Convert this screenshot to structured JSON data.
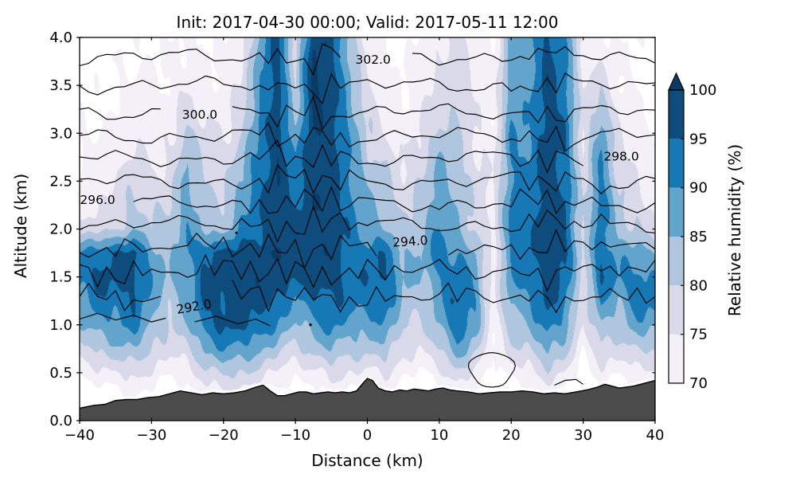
{
  "chart_data": {
    "type": "heatmap",
    "title": "Init: 2017-04-30 00:00; Valid: 2017-05-11 12:00",
    "xlabel": "Distance (km)",
    "ylabel": "Altitude (km)",
    "xlim": [
      -40,
      40
    ],
    "ylim": [
      0,
      4
    ],
    "xtick_values": [
      -40,
      -30,
      -20,
      -10,
      0,
      10,
      20,
      30,
      40
    ],
    "xtick_labels": [
      "−40",
      "−30",
      "−20",
      "−10",
      "0",
      "10",
      "20",
      "30",
      "40"
    ],
    "ytick_values": [
      0,
      0.5,
      1,
      1.5,
      2,
      2.5,
      3,
      3.5,
      4
    ],
    "ytick_labels": [
      "0.0",
      "0.5",
      "1.0",
      "1.5",
      "2.0",
      "2.5",
      "3.0",
      "3.5",
      "4.0"
    ],
    "grid": false,
    "colorbar": {
      "label": "Relative humidity (%)",
      "ticks": [
        70,
        75,
        80,
        85,
        90,
        95,
        100
      ],
      "levels": [
        70,
        75,
        80,
        85,
        90,
        95,
        100
      ],
      "band_colors": [
        "#f3f0f7",
        "#dad9ea",
        "#b0c6de",
        "#62a4cc",
        "#1678b5",
        "#0d4c7c"
      ],
      "over_color": "#0a3a66",
      "under_color": "#ffffff",
      "extend": "max"
    },
    "rh_grid": {
      "comment": "relative humidity (%) sampled on x from -40 to 40 step 2.5 km (33 cols), z from 4.0 down to 0.0 step 0.25 km (17 rows)",
      "x_start": -40,
      "x_step": 2.5,
      "z_start": 4.0,
      "z_step": -0.25,
      "values": [
        [
          68,
          67,
          68,
          69,
          70,
          69,
          71,
          70,
          69,
          72,
          86,
          97,
          78,
          99,
          97,
          84,
          73,
          70,
          69,
          71,
          74,
          77,
          72,
          69,
          88,
          86,
          97,
          91,
          73,
          72,
          69,
          70,
          68
        ],
        [
          68,
          68,
          69,
          70,
          70,
          70,
          72,
          71,
          70,
          74,
          88,
          98,
          79,
          101,
          97,
          85,
          74,
          71,
          70,
          72,
          75,
          78,
          73,
          70,
          88,
          87,
          98,
          92,
          74,
          74,
          70,
          70,
          68
        ],
        [
          68,
          68,
          70,
          71,
          71,
          71,
          74,
          72,
          71,
          76,
          89,
          98,
          80,
          102,
          98,
          87,
          76,
          72,
          70,
          73,
          77,
          79,
          74,
          70,
          89,
          88,
          98,
          93,
          75,
          78,
          71,
          70,
          68
        ],
        [
          69,
          69,
          70,
          72,
          72,
          72,
          77,
          74,
          72,
          78,
          90,
          98,
          82,
          101,
          98,
          88,
          78,
          73,
          71,
          74,
          79,
          80,
          74,
          71,
          89,
          89,
          98,
          93,
          76,
          84,
          73,
          71,
          69
        ],
        [
          70,
          70,
          72,
          74,
          73,
          73,
          82,
          76,
          74,
          80,
          91,
          99,
          86,
          99,
          98,
          89,
          80,
          75,
          72,
          76,
          82,
          81,
          75,
          72,
          90,
          90,
          98,
          94,
          75,
          88,
          75,
          72,
          70
        ],
        [
          70,
          71,
          73,
          76,
          74,
          75,
          85,
          78,
          76,
          83,
          92,
          99,
          90,
          99,
          98,
          90,
          82,
          78,
          74,
          78,
          85,
          82,
          76,
          73,
          90,
          91,
          98,
          94,
          76,
          91,
          77,
          74,
          71
        ],
        [
          71,
          72,
          75,
          79,
          76,
          77,
          87,
          80,
          78,
          86,
          93,
          99,
          92,
          99,
          98,
          91,
          84,
          81,
          76,
          80,
          87,
          83,
          77,
          74,
          90,
          92,
          98,
          95,
          77,
          92,
          79,
          76,
          72
        ],
        [
          73,
          74,
          77,
          81,
          78,
          79,
          88,
          82,
          80,
          88,
          94,
          99,
          94,
          99,
          98,
          92,
          86,
          83,
          78,
          82,
          89,
          84,
          78,
          75,
          91,
          93,
          98,
          95,
          80,
          93,
          81,
          78,
          74
        ],
        [
          76,
          78,
          80,
          84,
          81,
          83,
          89,
          84,
          83,
          90,
          95,
          99,
          96,
          99,
          98,
          93,
          88,
          85,
          80,
          84,
          91,
          85,
          80,
          74,
          92,
          94,
          98,
          96,
          78,
          93,
          83,
          80,
          76
        ],
        [
          90,
          94,
          95,
          96,
          88,
          83,
          89,
          95,
          96,
          97,
          98,
          99,
          97,
          99,
          98,
          94,
          92,
          94,
          85,
          85,
          92,
          90,
          85,
          72,
          92,
          94,
          98,
          96,
          79,
          95,
          88,
          87,
          85
        ],
        [
          92,
          96,
          96,
          97,
          90,
          84,
          88,
          96,
          97,
          98,
          98,
          98,
          97,
          98,
          97,
          94,
          94,
          96,
          86,
          84,
          90,
          94,
          88,
          73,
          90,
          92,
          97,
          94,
          78,
          95,
          90,
          92,
          90
        ],
        [
          88,
          93,
          93,
          95,
          87,
          82,
          87,
          96,
          97,
          98,
          97,
          96,
          88,
          94,
          96,
          92,
          92,
          93,
          84,
          82,
          88,
          96,
          90,
          72,
          87,
          89,
          96,
          92,
          76,
          90,
          86,
          93,
          92
        ],
        [
          84,
          88,
          89,
          92,
          85,
          80,
          84,
          93,
          96,
          96,
          94,
          90,
          84,
          88,
          92,
          88,
          88,
          89,
          81,
          79,
          85,
          95,
          88,
          71,
          83,
          85,
          93,
          88,
          74,
          85,
          82,
          88,
          87
        ],
        [
          78,
          81,
          83,
          85,
          80,
          76,
          79,
          86,
          90,
          89,
          86,
          82,
          78,
          82,
          85,
          82,
          82,
          83,
          77,
          75,
          80,
          88,
          82,
          70,
          78,
          80,
          86,
          82,
          71,
          79,
          77,
          81,
          80
        ],
        [
          71,
          73,
          75,
          77,
          74,
          71,
          73,
          78,
          81,
          80,
          78,
          74,
          71,
          74,
          77,
          75,
          74,
          76,
          71,
          70,
          73,
          79,
          75,
          67,
          72,
          74,
          78,
          75,
          67,
          73,
          71,
          74,
          73
        ],
        [
          64,
          66,
          68,
          70,
          68,
          65,
          67,
          71,
          73,
          72,
          70,
          67,
          65,
          67,
          70,
          68,
          67,
          69,
          65,
          64,
          66,
          71,
          68,
          62,
          65,
          67,
          70,
          68,
          62,
          66,
          64,
          67,
          66
        ],
        [
          60,
          60,
          60,
          60,
          60,
          60,
          60,
          60,
          60,
          60,
          60,
          60,
          60,
          60,
          60,
          60,
          60,
          60,
          60,
          60,
          60,
          60,
          60,
          60,
          60,
          60,
          60,
          60,
          60,
          60,
          60,
          60,
          60
        ]
      ]
    },
    "theta_contours": {
      "units": "K",
      "color": "#000000",
      "lines": [
        {
          "level": 302,
          "z": 3.8,
          "label": {
            "x": 0.8,
            "rot": 0
          }
        },
        {
          "level": 301,
          "z": 3.5
        },
        {
          "level": 300,
          "z": 3.22,
          "label": {
            "x": -23.3,
            "rot": 0
          }
        },
        {
          "level": 299,
          "z": 2.97
        },
        {
          "level": 298,
          "z": 2.74,
          "label": {
            "x": 35.3,
            "rot": 0
          }
        },
        {
          "level": 297,
          "z": 2.5
        },
        {
          "level": 296,
          "z": 2.27,
          "label": {
            "x": -37.5,
            "rot": 0
          }
        },
        {
          "level": 295,
          "z": 2.05
        },
        {
          "level": 294,
          "z": 1.81,
          "label": {
            "x": 6.0,
            "rot": -4
          }
        },
        {
          "level": 293,
          "z": 1.56
        },
        {
          "level": 292,
          "z": 1.29,
          "label": {
            "x": -24.0,
            "rot": -10
          }
        }
      ],
      "segments": [
        {
          "level": 291,
          "points": [
            [
              -40,
              1.06
            ],
            [
              -37.5,
              1.12
            ],
            [
              -35,
              1.05
            ],
            [
              -32.5,
              1.1
            ],
            [
              -30,
              1.03
            ],
            [
              -28,
              1.07
            ]
          ]
        },
        {
          "level": 291,
          "points": [
            [
              -24,
              1.03
            ],
            [
              -21,
              1.09
            ],
            [
              -18,
              1.01
            ],
            [
              -15.5,
              1.06
            ],
            [
              -13.5,
              0.99
            ]
          ]
        },
        {
          "level": 291,
          "points": [
            [
              26,
              0.37
            ],
            [
              27.5,
              0.42
            ],
            [
              29,
              0.43
            ],
            [
              30,
              0.38
            ]
          ]
        }
      ],
      "loops": [
        {
          "level": 291,
          "cx": 17.3,
          "cz": 0.53,
          "rx": 3.1,
          "rz": 0.18
        }
      ],
      "dots": [
        [
          -18.2,
          1.96
        ],
        [
          -7.9,
          1.0
        ]
      ]
    },
    "terrain": {
      "color": "#4b4b4b",
      "edge_color": "#000000",
      "points": [
        [
          -40,
          0.13
        ],
        [
          -38,
          0.16
        ],
        [
          -36.5,
          0.17
        ],
        [
          -35,
          0.21
        ],
        [
          -33.5,
          0.22
        ],
        [
          -32,
          0.22
        ],
        [
          -30.5,
          0.24
        ],
        [
          -29,
          0.25
        ],
        [
          -27.5,
          0.28
        ],
        [
          -26,
          0.31
        ],
        [
          -24.5,
          0.29
        ],
        [
          -23,
          0.27
        ],
        [
          -21.5,
          0.29
        ],
        [
          -20,
          0.28
        ],
        [
          -18.5,
          0.29
        ],
        [
          -17,
          0.31
        ],
        [
          -15.5,
          0.35
        ],
        [
          -14.5,
          0.37
        ],
        [
          -13.5,
          0.31
        ],
        [
          -12.5,
          0.26
        ],
        [
          -11.5,
          0.26
        ],
        [
          -10.5,
          0.28
        ],
        [
          -9.5,
          0.3
        ],
        [
          -8.5,
          0.3
        ],
        [
          -7.5,
          0.28
        ],
        [
          -6.5,
          0.29
        ],
        [
          -5.5,
          0.3
        ],
        [
          -4.5,
          0.29
        ],
        [
          -3.5,
          0.3
        ],
        [
          -2.5,
          0.29
        ],
        [
          -1.5,
          0.31
        ],
        [
          -0.5,
          0.4
        ],
        [
          0,
          0.44
        ],
        [
          0.7,
          0.42
        ],
        [
          1.5,
          0.34
        ],
        [
          2.5,
          0.31
        ],
        [
          3.5,
          0.3
        ],
        [
          4.5,
          0.32
        ],
        [
          5.5,
          0.31
        ],
        [
          6.5,
          0.33
        ],
        [
          7.5,
          0.32
        ],
        [
          8.5,
          0.31
        ],
        [
          9.5,
          0.33
        ],
        [
          10.5,
          0.34
        ],
        [
          11.5,
          0.32
        ],
        [
          12.5,
          0.31
        ],
        [
          14,
          0.3
        ],
        [
          15.5,
          0.28
        ],
        [
          17,
          0.29
        ],
        [
          18.5,
          0.3
        ],
        [
          20,
          0.3
        ],
        [
          21.5,
          0.31
        ],
        [
          23,
          0.3
        ],
        [
          24.5,
          0.28
        ],
        [
          26,
          0.29
        ],
        [
          27.5,
          0.28
        ],
        [
          29,
          0.3
        ],
        [
          30.5,
          0.32
        ],
        [
          32,
          0.35
        ],
        [
          33,
          0.38
        ],
        [
          34,
          0.36
        ],
        [
          35,
          0.34
        ],
        [
          36,
          0.35
        ],
        [
          37,
          0.36
        ],
        [
          38,
          0.38
        ],
        [
          39,
          0.4
        ],
        [
          40,
          0.42
        ]
      ]
    }
  }
}
